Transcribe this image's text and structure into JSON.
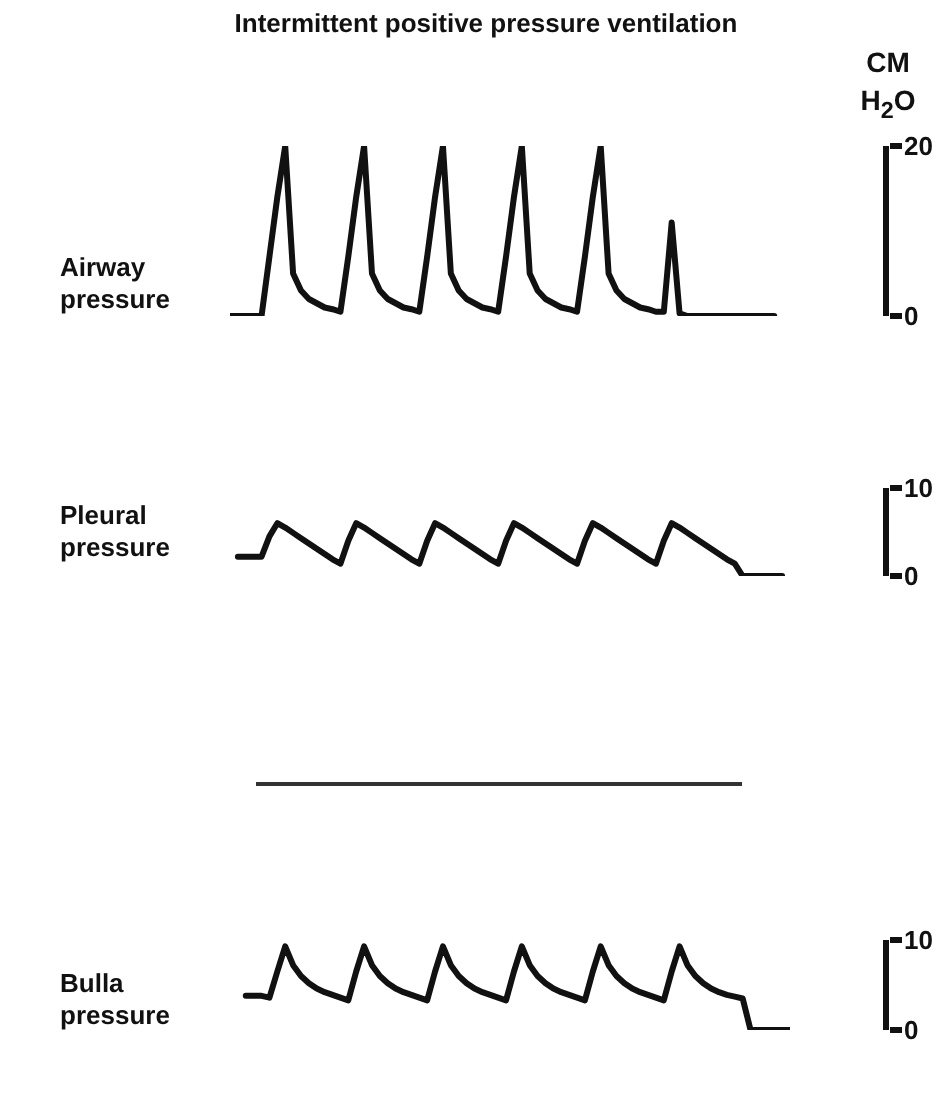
{
  "chart_data": [
    {
      "type": "line",
      "title": "Intermittent positive pressure ventilation",
      "ylabel": "Airway pressure",
      "annotations": [
        "CM H$_{2}$O"
      ],
      "categories": [
        null,
        null,
        null,
        null,
        null,
        null,
        null,
        null,
        null,
        null,
        null,
        null,
        null,
        null,
        null,
        null,
        null,
        null,
        null,
        null,
        null,
        null,
        null,
        null,
        null,
        null,
        null,
        null,
        null,
        null,
        null,
        null,
        null,
        null,
        null,
        null,
        null,
        null,
        null,
        null,
        null,
        null,
        null,
        null,
        null,
        null,
        null,
        null,
        null,
        null,
        null,
        null,
        null,
        null,
        null,
        null,
        null,
        null,
        null,
        null,
        null,
        null,
        null,
        null,
        null,
        null,
        null,
        null,
        null,
        null,
        null,
        null
      ],
      "series": [
        {
          "color": "#111111",
          "values": [
            0,
            0,
            0,
            0,
            0,
            7,
            14,
            20,
            5,
            3,
            2,
            1.5,
            1,
            0.8,
            0.5,
            7,
            14,
            20,
            5,
            3,
            2,
            1.5,
            1,
            0.8,
            0.5,
            7,
            14,
            20,
            5,
            3,
            2,
            1.5,
            1,
            0.8,
            0.5,
            7,
            14,
            20,
            5,
            3,
            2,
            1.5,
            1,
            0.8,
            0.5,
            7,
            14,
            20,
            5,
            3,
            2,
            1.5,
            1,
            0.8,
            0.5,
            0.5,
            11,
            0.3,
            0,
            0,
            0,
            0,
            0,
            0,
            0,
            0,
            0,
            0,
            0,
            0,
            null,
            null
          ]
        }
      ],
      "ylim": [
        0,
        20
      ],
      "yticks": [
        0,
        20
      ],
      "tick_labels": "y",
      "marker": "none",
      "line_style": "solid"
    },
    {
      "type": "line",
      "ylabel": "Pleural pressure",
      "categories": [
        null,
        null,
        null,
        null,
        null,
        null,
        null,
        null,
        null,
        null,
        null,
        null,
        null,
        null,
        null,
        null,
        null,
        null,
        null,
        null,
        null,
        null,
        null,
        null,
        null,
        null,
        null,
        null,
        null,
        null,
        null,
        null,
        null,
        null,
        null,
        null,
        null,
        null,
        null,
        null,
        null,
        null,
        null,
        null,
        null,
        null,
        null,
        null,
        null,
        null,
        null,
        null,
        null,
        null,
        null,
        null,
        null,
        null,
        null,
        null,
        null,
        null,
        null,
        null,
        null,
        null,
        null,
        null,
        null,
        null,
        null,
        null
      ],
      "yticks": [
        0,
        10
      ],
      "series": [
        {
          "color": "#111111",
          "values": [
            null,
            2.2,
            2.2,
            2.2,
            2.2,
            4.5,
            6,
            5.5,
            4.9,
            4.3,
            3.7,
            3.1,
            2.5,
            1.9,
            1.4,
            4,
            6,
            5.5,
            4.9,
            4.3,
            3.7,
            3.1,
            2.5,
            1.9,
            1.4,
            4,
            6,
            5.5,
            4.9,
            4.3,
            3.7,
            3.1,
            2.5,
            1.9,
            1.4,
            4,
            6,
            5.5,
            4.9,
            4.3,
            3.7,
            3.1,
            2.5,
            1.9,
            1.4,
            4,
            6,
            5.5,
            4.9,
            4.3,
            3.7,
            3.1,
            2.5,
            1.9,
            1.4,
            4,
            6,
            5.5,
            4.9,
            4.3,
            3.7,
            3.1,
            2.5,
            1.9,
            1.4,
            0,
            0,
            0,
            0,
            0,
            0,
            null
          ]
        }
      ],
      "ylim": [
        0,
        10
      ],
      "tick_labels": "y",
      "marker": "none",
      "line_style": "solid"
    },
    {
      "type": "line",
      "ylabel": "Bulla pressure",
      "categories": [
        null,
        null,
        null,
        null,
        null,
        null,
        null,
        null,
        null,
        null,
        null,
        null,
        null,
        null,
        null,
        null,
        null,
        null,
        null,
        null,
        null,
        null,
        null,
        null,
        null,
        null,
        null,
        null,
        null,
        null,
        null,
        null,
        null,
        null,
        null,
        null,
        null,
        null,
        null,
        null,
        null,
        null,
        null,
        null,
        null,
        null,
        null,
        null,
        null,
        null,
        null,
        null,
        null,
        null,
        null,
        null,
        null,
        null,
        null,
        null,
        null,
        null,
        null,
        null,
        null,
        null,
        null,
        null,
        null,
        null,
        null,
        null
      ],
      "series": [
        {
          "color": "#111111",
          "values": [
            null,
            null,
            3.8,
            3.8,
            3.8,
            3.6,
            6.5,
            9.3,
            7.2,
            6,
            5.2,
            4.6,
            4.2,
            3.9,
            3.6,
            3.3,
            6.5,
            9.3,
            7.2,
            6,
            5.2,
            4.6,
            4.2,
            3.9,
            3.6,
            3.3,
            6.5,
            9.3,
            7.2,
            6,
            5.2,
            4.6,
            4.2,
            3.9,
            3.6,
            3.3,
            6.5,
            9.3,
            7.2,
            6,
            5.2,
            4.6,
            4.2,
            3.9,
            3.6,
            3.3,
            6.5,
            9.3,
            7.2,
            6,
            5.2,
            4.6,
            4.2,
            3.9,
            3.6,
            3.3,
            6.5,
            9.3,
            7.2,
            6,
            5.2,
            4.6,
            4.2,
            3.9,
            3.7,
            3.5,
            0,
            0,
            0,
            0,
            0,
            0
          ]
        }
      ],
      "ylim": [
        0,
        10
      ],
      "yticks": [
        0,
        10
      ],
      "tick_labels": "y",
      "marker": "none",
      "line_style": "solid"
    }
  ]
}
